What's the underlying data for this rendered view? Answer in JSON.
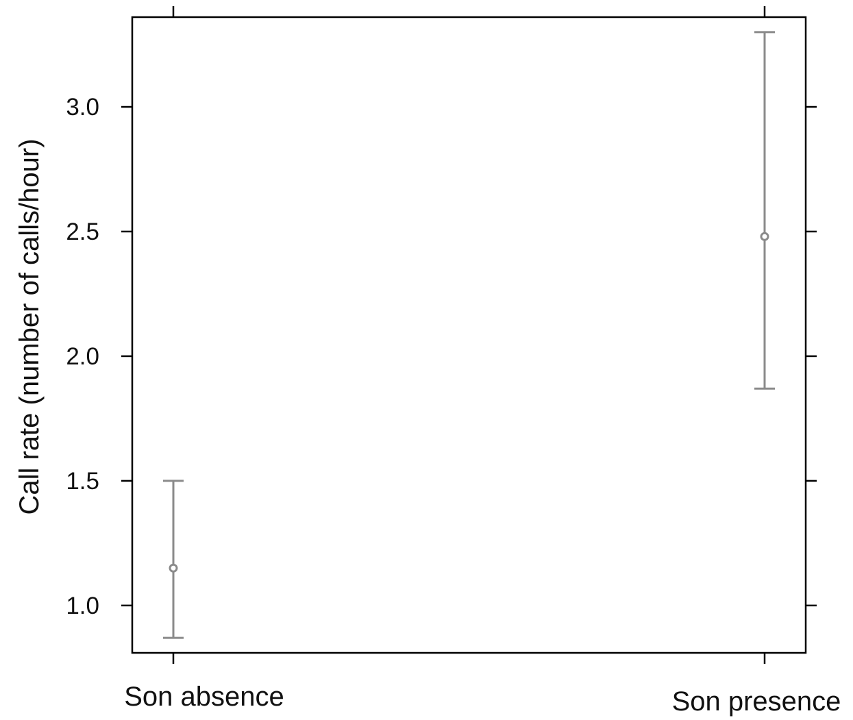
{
  "chart_data": {
    "type": "scatter",
    "title": "",
    "xlabel": "",
    "ylabel": "Call rate (number of calls/hour)",
    "categories": [
      "Son absence",
      "Son presence"
    ],
    "series": [
      {
        "values": [
          1.15,
          2.48
        ],
        "lower": [
          0.87,
          1.87
        ],
        "upper": [
          1.5,
          3.3
        ]
      }
    ],
    "yticks": [
      1.0,
      1.5,
      2.0,
      2.5,
      3.0
    ],
    "ytick_labels": [
      "1.0",
      "1.5",
      "2.0",
      "2.5",
      "3.0"
    ],
    "ylim": [
      0.81,
      3.36
    ],
    "grid": false,
    "legend": "none",
    "colors": {
      "points": "#8a8a8a",
      "frame": "#000000",
      "text": "#111111"
    }
  }
}
